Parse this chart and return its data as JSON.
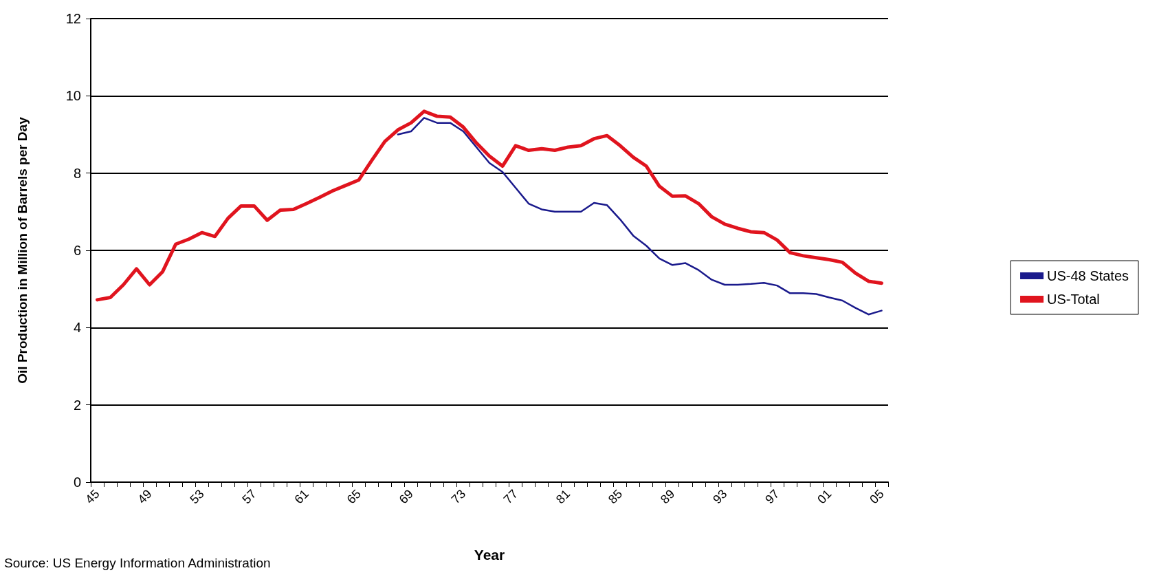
{
  "chart_data": {
    "type": "line",
    "xlabel": "Year",
    "ylabel": "Oil Production in Million of Barrels per Day",
    "categories": [
      "45",
      null,
      null,
      null,
      "49",
      null,
      null,
      null,
      "53",
      null,
      null,
      null,
      "57",
      null,
      null,
      null,
      "61",
      null,
      null,
      null,
      "65",
      null,
      null,
      null,
      "69",
      null,
      null,
      null,
      "73",
      null,
      null,
      null,
      "77",
      null,
      null,
      null,
      "81",
      null,
      null,
      null,
      "85",
      null,
      null,
      null,
      "89",
      null,
      null,
      null,
      "93",
      null,
      null,
      null,
      "97",
      null,
      null,
      null,
      "01",
      null,
      null,
      null,
      "05"
    ],
    "series": [
      {
        "name": "US-48 States",
        "color": "#1a1a8c",
        "values": [
          null,
          null,
          null,
          null,
          null,
          null,
          null,
          null,
          null,
          null,
          null,
          null,
          null,
          null,
          null,
          null,
          null,
          null,
          null,
          null,
          null,
          null,
          null,
          9.0,
          9.08,
          9.43,
          9.3,
          9.3,
          9.08,
          8.67,
          8.26,
          8.03,
          7.62,
          7.21,
          7.06,
          7.0,
          7.0,
          7.0,
          7.23,
          7.17,
          6.8,
          6.38,
          6.12,
          5.79,
          5.62,
          5.67,
          5.49,
          5.24,
          5.11,
          5.11,
          5.13,
          5.16,
          5.09,
          4.89,
          4.89,
          4.87,
          4.78,
          4.7,
          4.51,
          4.34,
          4.44
        ]
      },
      {
        "name": "US-Total",
        "color": "#e0141e",
        "values": [
          4.72,
          4.78,
          5.11,
          5.52,
          5.11,
          5.45,
          6.16,
          6.29,
          6.46,
          6.36,
          6.83,
          7.15,
          7.15,
          6.78,
          7.04,
          7.06,
          7.21,
          7.37,
          7.54,
          7.68,
          7.82,
          8.33,
          8.82,
          9.12,
          9.3,
          9.6,
          9.47,
          9.45,
          9.19,
          8.78,
          8.44,
          8.18,
          8.71,
          8.59,
          8.63,
          8.59,
          8.67,
          8.71,
          8.89,
          8.97,
          8.71,
          8.41,
          8.18,
          7.66,
          7.4,
          7.41,
          7.21,
          6.87,
          6.68,
          6.57,
          6.48,
          6.46,
          6.27,
          5.94,
          5.86,
          5.81,
          5.76,
          5.69,
          5.41,
          5.2,
          5.15
        ]
      }
    ],
    "ylim": [
      0,
      12
    ],
    "yticks": [
      0,
      2,
      4,
      6,
      8,
      10,
      12
    ],
    "grid": "y",
    "legend": "right",
    "marker": "none",
    "line_style": "solid",
    "annotations": [
      "Source: US Energy Information Administration"
    ]
  }
}
